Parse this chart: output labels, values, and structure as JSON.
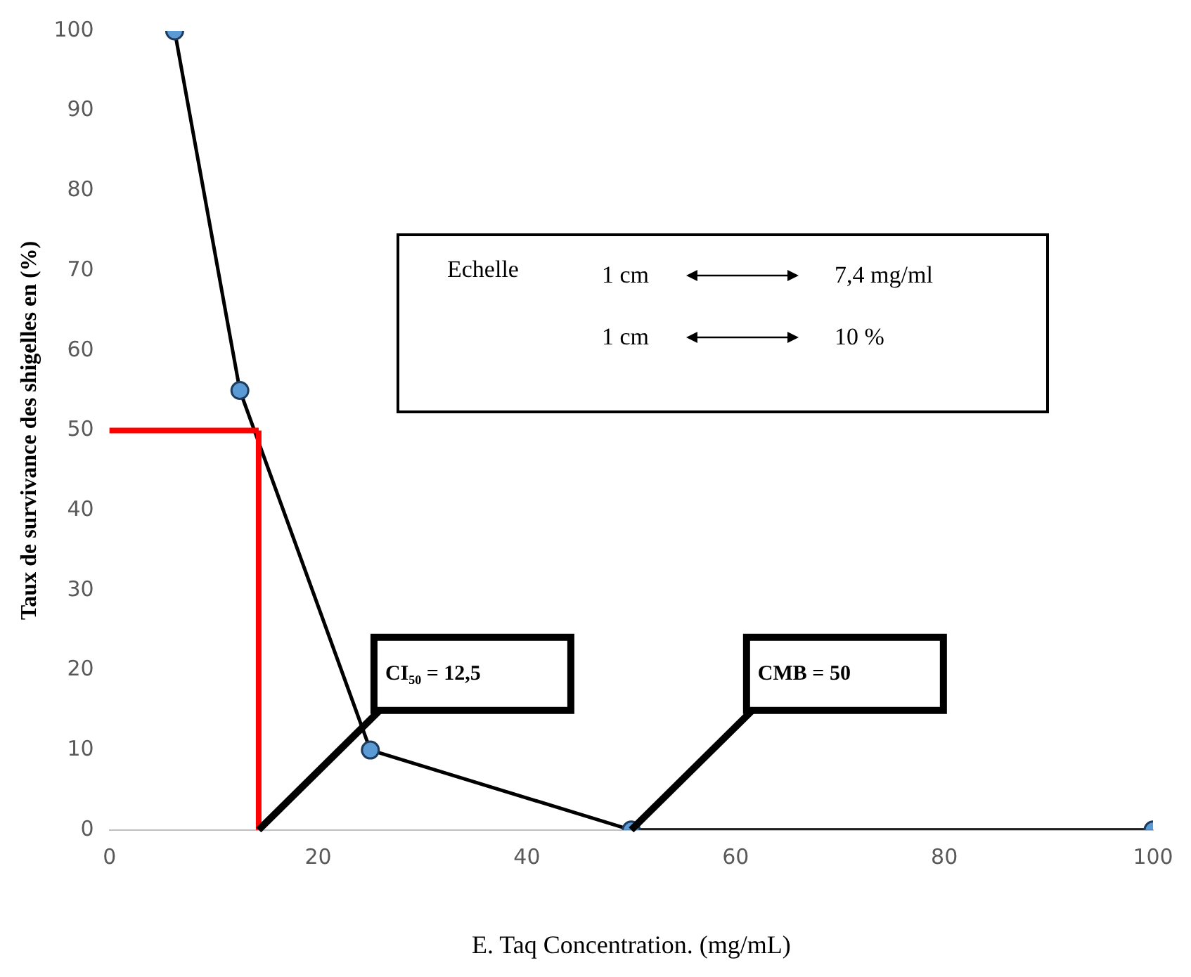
{
  "chart_data": {
    "type": "line",
    "xlabel": "E. Taq Concentration. (mg/mL)",
    "ylabel": "Taux de survivance des shigelles en (%)",
    "x": [
      6.25,
      12.5,
      25,
      50,
      100
    ],
    "series": [
      {
        "color": "#000000",
        "values": [
          100,
          55,
          10,
          0,
          0
        ]
      }
    ],
    "xlim": [
      0,
      100
    ],
    "xticks": [
      0,
      20,
      40,
      60,
      80,
      100
    ],
    "ylim": [
      0,
      100
    ],
    "yticks": [
      0,
      10,
      20,
      30,
      40,
      50,
      60,
      70,
      80,
      90,
      100
    ],
    "grid": false,
    "legend": false,
    "marker": "circle",
    "line_style": "solid",
    "ref_lines": [
      {
        "axis": "y",
        "value": 50,
        "color": "#ff0000"
      },
      {
        "axis": "x",
        "value": 14.3,
        "color": "#ff0000"
      }
    ],
    "annotations": [
      "Echelle",
      "1 cm",
      "7,4 mg/ml",
      "1 cm",
      "10 %",
      {
        "text": "CI₅₀ = 12,5",
        "x": 14.3,
        "y": 0
      },
      {
        "text": "CMB = 50",
        "x": 50,
        "y": 0
      }
    ]
  }
}
